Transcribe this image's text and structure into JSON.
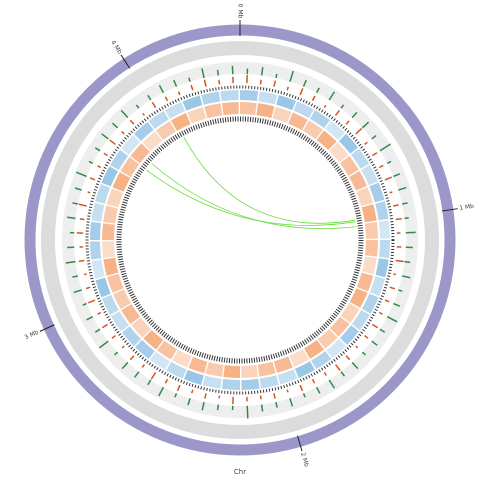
{
  "chart_data": {
    "type": "circos",
    "title": "Chr",
    "xlim": [
      0,
      4.4
    ],
    "xticks": [
      {
        "value": 0,
        "label": "0 Mb"
      },
      {
        "value": 1,
        "label": "1 Mb"
      },
      {
        "value": 2,
        "label": "2 Mb"
      },
      {
        "value": 3,
        "label": "3 Mb"
      },
      {
        "value": 4,
        "label": "4 Mb"
      }
    ],
    "tracks": [
      {
        "kind": "histogram",
        "color": "#2e8b4a",
        "values": [
          0.4,
          0.6,
          0.3,
          0.8,
          0.5,
          0.4,
          0.7,
          0.3,
          0.5,
          0.6,
          0.4,
          0.9,
          0.3,
          0.5,
          0.6,
          0.4,
          0.3,
          0.7,
          0.5,
          0.4,
          0.6,
          0.3,
          0.5,
          0.8,
          0.4,
          0.5,
          0.3,
          0.6,
          0.4,
          0.7,
          0.5,
          0.3,
          0.6,
          0.4,
          0.5,
          0.9,
          0.3,
          0.4,
          0.6,
          0.5,
          0.3,
          0.7,
          0.4,
          0.5,
          0.6,
          0.3,
          0.8,
          0.4,
          0.5,
          0.3,
          0.6,
          0.4,
          0.7,
          0.5,
          0.3,
          0.6,
          0.4,
          0.5,
          0.8,
          0.3,
          0.4,
          0.6,
          0.5,
          0.7,
          0.3,
          0.4,
          0.6,
          0.5,
          0.3,
          0.7,
          0.4,
          0.6
        ]
      },
      {
        "kind": "histogram",
        "color": "#d9531e",
        "values": [
          0.9,
          0.5,
          0.7,
          0.4,
          0.8,
          0.6,
          0.3,
          0.7,
          0.5,
          0.9,
          0.4,
          0.6,
          0.5,
          0.8,
          0.3,
          0.6,
          0.7,
          0.4,
          0.5,
          0.9,
          0.3,
          0.6,
          0.5,
          0.4,
          0.7,
          0.5,
          0.3,
          0.6,
          0.8,
          0.4,
          0.5,
          0.7,
          0.3,
          0.6,
          0.4,
          0.5,
          0.8,
          0.3,
          0.6,
          0.4,
          0.7,
          0.5,
          0.9,
          0.4,
          0.6,
          0.3,
          0.5,
          0.7,
          0.4,
          0.8,
          0.5,
          0.3,
          0.6,
          0.4,
          0.7,
          0.5,
          0.9,
          0.3,
          0.6,
          0.4,
          0.5,
          0.8,
          0.4,
          0.6,
          0.3,
          0.7,
          0.5,
          0.4,
          0.6,
          0.8,
          0.5,
          0.7
        ]
      },
      {
        "kind": "heat",
        "color": "#8fc1e3",
        "values": [
          0.8,
          0.5,
          0.9,
          0.6,
          0.7,
          0.4,
          0.9,
          0.6,
          0.5,
          0.8,
          0.7,
          0.4,
          0.6,
          0.9,
          0.5,
          0.7,
          0.6,
          0.8,
          0.4,
          0.7,
          0.9,
          0.5,
          0.6,
          0.8,
          0.7,
          0.5,
          0.9,
          0.6,
          0.4,
          0.8,
          0.7,
          0.5,
          0.6,
          0.9,
          0.4,
          0.7,
          0.8,
          0.5,
          0.6,
          0.9,
          0.7,
          0.4,
          0.8,
          0.6,
          0.5,
          0.9,
          0.7,
          0.6
        ]
      },
      {
        "kind": "heat",
        "color": "#f5a878",
        "values": [
          0.7,
          0.9,
          0.5,
          0.8,
          0.6,
          0.9,
          0.4,
          0.7,
          0.8,
          0.5,
          0.9,
          0.6,
          0.7,
          0.4,
          0.8,
          0.9,
          0.5,
          0.7,
          0.6,
          0.9,
          0.4,
          0.8,
          0.7,
          0.5,
          0.9,
          0.6,
          0.8,
          0.4,
          0.7,
          0.9,
          0.5,
          0.8,
          0.6,
          0.7,
          0.9,
          0.4,
          0.8,
          0.6,
          0.5,
          0.9,
          0.7,
          0.8,
          0.4,
          0.6,
          0.9,
          0.5,
          0.7,
          0.8
        ]
      }
    ],
    "links": {
      "color": "#66dd33",
      "values": [
        [
          4.05,
          0.98
        ],
        [
          3.75,
          0.99
        ],
        [
          3.8,
          1.02
        ]
      ]
    }
  }
}
